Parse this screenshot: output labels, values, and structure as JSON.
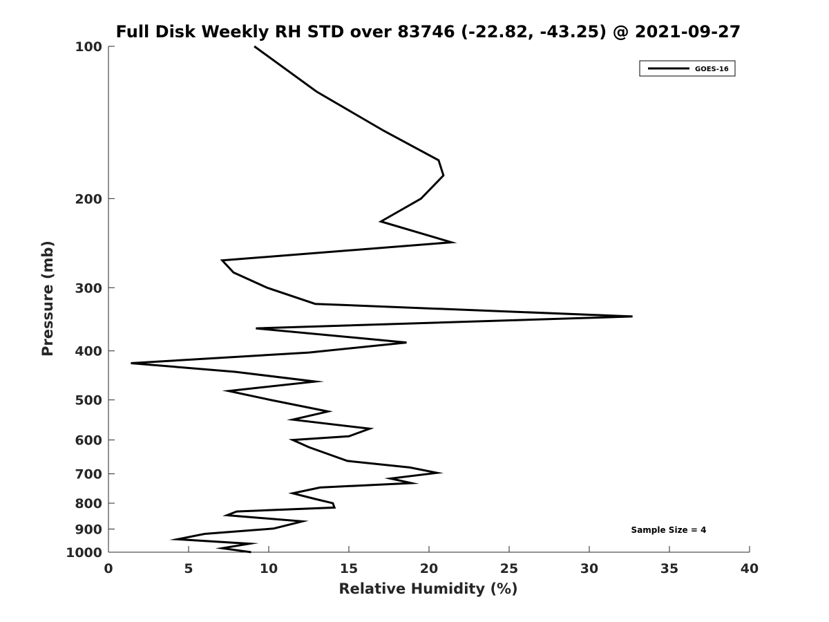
{
  "chart_data": {
    "type": "line",
    "title": "Full Disk Weekly RH STD over 83746 (-22.82, -43.25) @ 2021-09-27",
    "xlabel": "Relative Humidity (%)",
    "ylabel": "Pressure (mb)",
    "xlim": [
      0,
      40
    ],
    "ylim": [
      100,
      1000
    ],
    "y_scale": "log",
    "y_direction": "reversed",
    "x_ticks": [
      0,
      5,
      10,
      15,
      20,
      25,
      30,
      35,
      40
    ],
    "y_ticks": [
      100,
      200,
      300,
      400,
      500,
      600,
      700,
      800,
      900,
      1000
    ],
    "grid": false,
    "legend_position": "top-right",
    "annotation": "Sample Size = 4",
    "series": [
      {
        "name": "GOES-16",
        "color": "#000000",
        "x": [
          9.1,
          13.0,
          17.2,
          20.6,
          20.9,
          19.5,
          17.0,
          21.4,
          7.1,
          7.8,
          9.9,
          12.9,
          32.7,
          9.2,
          18.6,
          12.5,
          1.4,
          7.9,
          12.9,
          7.5,
          10.1,
          13.7,
          11.5,
          16.3,
          15.0,
          11.5,
          12.5,
          14.9,
          18.8,
          20.5,
          17.6,
          18.9,
          13.2,
          11.5,
          12.9,
          14.0,
          14.1,
          8.0,
          7.4,
          12.1,
          10.3,
          6.0,
          4.3,
          8.8,
          7.1,
          8.9
        ],
        "y": [
          100,
          123,
          147,
          168,
          180,
          200,
          222,
          244,
          265,
          280,
          300,
          323,
          342,
          361,
          385,
          403,
          423,
          440,
          460,
          480,
          500,
          527,
          547,
          570,
          590,
          600,
          620,
          660,
          680,
          697,
          715,
          730,
          745,
          765,
          785,
          800,
          816,
          831,
          845,
          869,
          898,
          920,
          943,
          962,
          982,
          1000
        ]
      }
    ]
  }
}
